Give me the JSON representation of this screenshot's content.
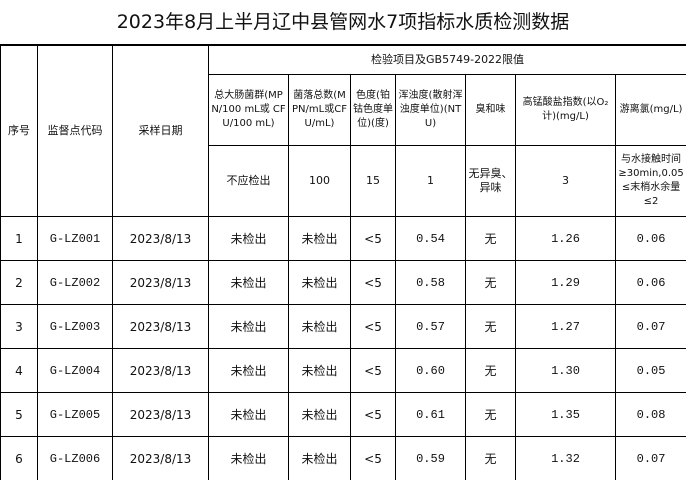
{
  "title": "2023年8月上半月辽中县管网水7项指标水质检测数据",
  "header": {
    "fixed_columns": [
      "序号",
      "监督点代码",
      "采样日期"
    ],
    "group": "检验项目及GB5749-2022限值",
    "columns": [
      "总大肠菌群(MPN/100 mL或 CFU/100 mL)",
      "菌落总数(MPN/mL或CFU/mL)",
      "色度(铂钴色度单位)(度)",
      "浑浊度(散射浑浊度单位)(NTU)",
      "臭和味",
      "高锰酸盐指数(以O₂计)(mg/L)",
      "游离氯(mg/L)"
    ],
    "limits": [
      "不应检出",
      "100",
      "15",
      "1",
      "无异臭、异味",
      "3",
      "与水接触时间≥30min,0.05≤末梢水余量≤2"
    ]
  },
  "table": {
    "rows": [
      [
        "1",
        "G-LZ001",
        "2023/8/13",
        "未检出",
        "未检出",
        "<5",
        "0.54",
        "无",
        "1.26",
        "0.06"
      ],
      [
        "2",
        "G-LZ002",
        "2023/8/13",
        "未检出",
        "未检出",
        "<5",
        "0.58",
        "无",
        "1.29",
        "0.06"
      ],
      [
        "3",
        "G-LZ003",
        "2023/8/13",
        "未检出",
        "未检出",
        "<5",
        "0.57",
        "无",
        "1.27",
        "0.07"
      ],
      [
        "4",
        "G-LZ004",
        "2023/8/13",
        "未检出",
        "未检出",
        "<5",
        "0.60",
        "无",
        "1.30",
        "0.05"
      ],
      [
        "5",
        "G-LZ005",
        "2023/8/13",
        "未检出",
        "未检出",
        "<5",
        "0.61",
        "无",
        "1.35",
        "0.08"
      ],
      [
        "6",
        "G-LZ006",
        "2023/8/13",
        "未检出",
        "未检出",
        "<5",
        "0.59",
        "无",
        "1.32",
        "0.07"
      ]
    ]
  }
}
